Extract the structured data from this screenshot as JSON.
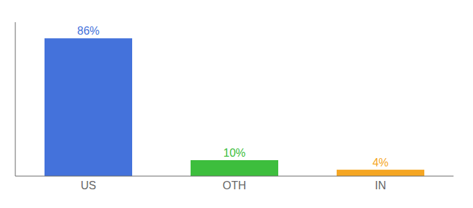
{
  "chart_data": {
    "type": "bar",
    "categories": [
      "US",
      "OTH",
      "IN"
    ],
    "values": [
      86,
      10,
      4
    ],
    "value_labels": [
      "86%",
      "10%",
      "4%"
    ],
    "colors": [
      "#4472db",
      "#3dbe3d",
      "#f5a623"
    ],
    "ylim": [
      0,
      96
    ],
    "data_labels": true,
    "tick_labels": "x"
  }
}
